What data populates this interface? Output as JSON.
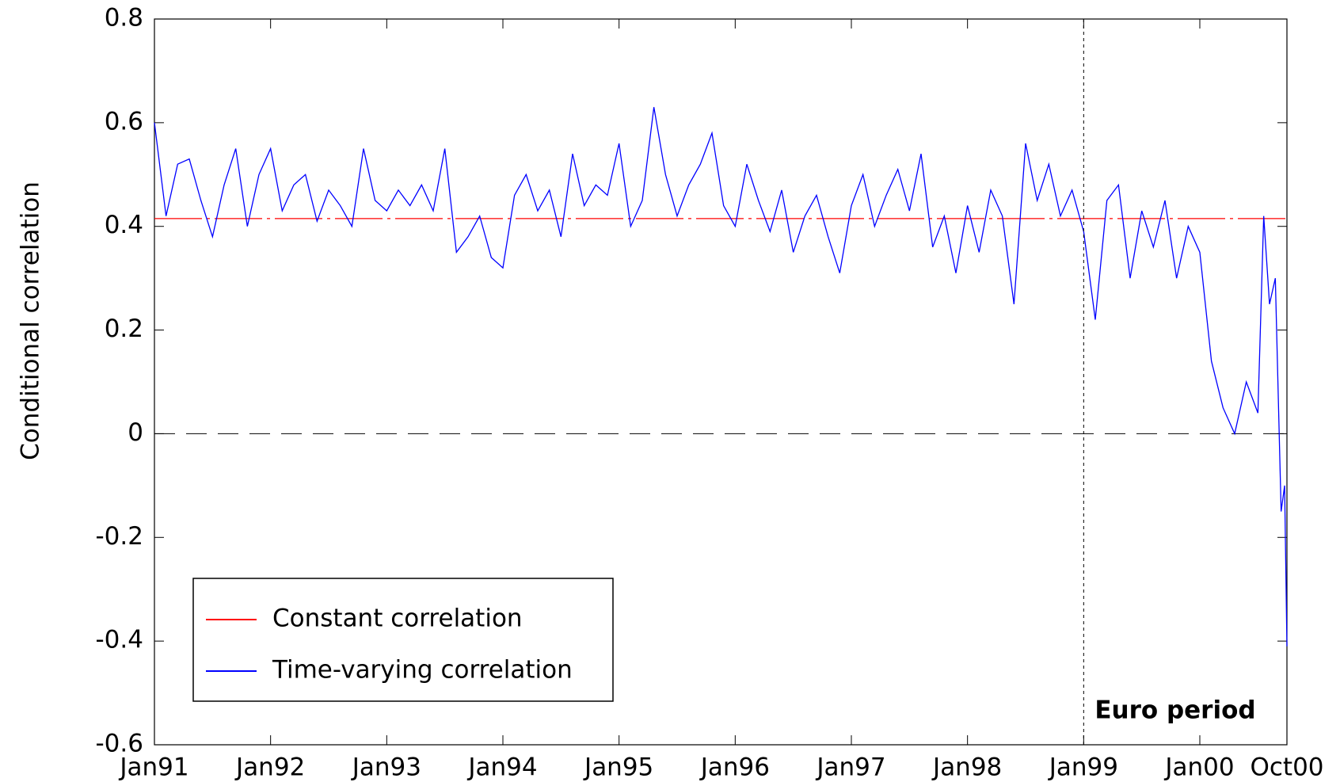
{
  "chart_data": {
    "type": "line",
    "ylabel": "Conditional correlation",
    "xlim": [
      1991,
      2000.75
    ],
    "xticks": [
      {
        "value": 1991,
        "label": "Jan91"
      },
      {
        "value": 1992,
        "label": "Jan92"
      },
      {
        "value": 1993,
        "label": "Jan93"
      },
      {
        "value": 1994,
        "label": "Jan94"
      },
      {
        "value": 1995,
        "label": "Jan95"
      },
      {
        "value": 1996,
        "label": "Jan96"
      },
      {
        "value": 1997,
        "label": "Jan97"
      },
      {
        "value": 1998,
        "label": "Jan98"
      },
      {
        "value": 1999,
        "label": "Jan99"
      },
      {
        "value": 2000,
        "label": "Jan00"
      },
      {
        "value": 2000.75,
        "label": "Oct00"
      }
    ],
    "ylim": [
      -0.6,
      0.8
    ],
    "yticks": [
      -0.6,
      -0.4,
      -0.2,
      0,
      0.2,
      0.4,
      0.6,
      0.8
    ],
    "legend": "lower left",
    "constant": {
      "name": "Constant correlation",
      "color": "#ff0000",
      "value": 0.415
    },
    "series": [
      {
        "name": "Time-varying correlation",
        "color": "#0000ff",
        "x": [
          1991.0,
          1991.1,
          1991.2,
          1991.3,
          1991.4,
          1991.5,
          1991.6,
          1991.7,
          1991.8,
          1991.9,
          1992.0,
          1992.1,
          1992.2,
          1992.3,
          1992.4,
          1992.5,
          1992.6,
          1992.7,
          1992.8,
          1992.9,
          1993.0,
          1993.1,
          1993.2,
          1993.3,
          1993.4,
          1993.5,
          1993.6,
          1993.7,
          1993.8,
          1993.9,
          1994.0,
          1994.1,
          1994.2,
          1994.3,
          1994.4,
          1994.5,
          1994.6,
          1994.7,
          1994.8,
          1994.9,
          1995.0,
          1995.1,
          1995.2,
          1995.3,
          1995.4,
          1995.5,
          1995.6,
          1995.7,
          1995.8,
          1995.9,
          1996.0,
          1996.1,
          1996.2,
          1996.3,
          1996.4,
          1996.5,
          1996.6,
          1996.7,
          1996.8,
          1996.9,
          1997.0,
          1997.1,
          1997.2,
          1997.3,
          1997.4,
          1997.5,
          1997.6,
          1997.7,
          1997.8,
          1997.9,
          1998.0,
          1998.1,
          1998.2,
          1998.3,
          1998.4,
          1998.5,
          1998.6,
          1998.7,
          1998.8,
          1998.9,
          1999.0,
          1999.1,
          1999.2,
          1999.3,
          1999.4,
          1999.5,
          1999.6,
          1999.7,
          1999.8,
          1999.9,
          2000.0,
          2000.1,
          2000.2,
          2000.3,
          2000.4,
          2000.5,
          2000.55,
          2000.6,
          2000.65,
          2000.7,
          2000.73,
          2000.75
        ],
        "values": [
          0.6,
          0.42,
          0.52,
          0.53,
          0.45,
          0.38,
          0.48,
          0.55,
          0.4,
          0.5,
          0.55,
          0.43,
          0.48,
          0.5,
          0.41,
          0.47,
          0.44,
          0.4,
          0.55,
          0.45,
          0.43,
          0.47,
          0.44,
          0.48,
          0.43,
          0.55,
          0.35,
          0.38,
          0.42,
          0.34,
          0.32,
          0.46,
          0.5,
          0.43,
          0.47,
          0.38,
          0.54,
          0.44,
          0.48,
          0.46,
          0.56,
          0.4,
          0.45,
          0.63,
          0.5,
          0.42,
          0.48,
          0.52,
          0.58,
          0.44,
          0.4,
          0.52,
          0.45,
          0.39,
          0.47,
          0.35,
          0.42,
          0.46,
          0.38,
          0.31,
          0.44,
          0.5,
          0.4,
          0.46,
          0.51,
          0.43,
          0.54,
          0.36,
          0.42,
          0.31,
          0.44,
          0.35,
          0.47,
          0.42,
          0.25,
          0.56,
          0.45,
          0.52,
          0.42,
          0.47,
          0.39,
          0.22,
          0.45,
          0.48,
          0.3,
          0.43,
          0.36,
          0.45,
          0.3,
          0.4,
          0.35,
          0.14,
          0.05,
          0.0,
          0.1,
          0.04,
          0.42,
          0.25,
          0.3,
          -0.15,
          -0.1,
          -0.41
        ]
      }
    ],
    "annotations": [
      {
        "text": "Euro period",
        "x": 1999
      }
    ]
  }
}
